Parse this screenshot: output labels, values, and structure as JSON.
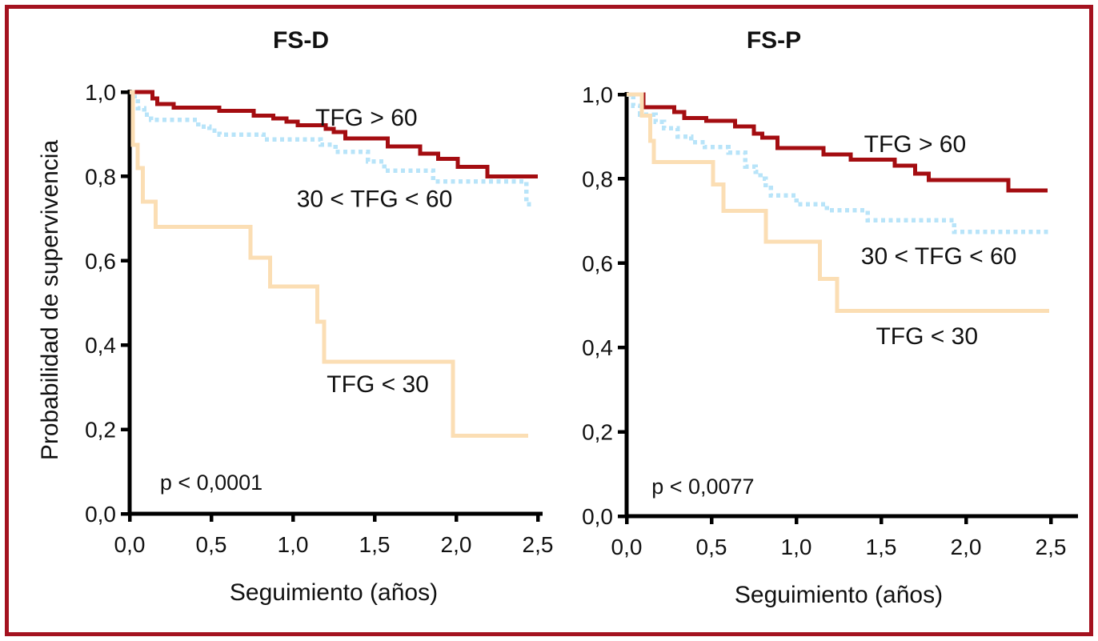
{
  "figure": {
    "border_color": "#A4121F",
    "background_color": "#FFFFFF",
    "text_color": "#111111",
    "axis_color": "#000000"
  },
  "colors": {
    "tfg_gt60": "#A40D11",
    "tfg_30_60": "#B8E4F9",
    "tfg_lt30": "#FBDEB4"
  },
  "chart_data": [
    {
      "type": "line",
      "subtype": "kaplan-meier-step",
      "id": "fsd",
      "title": "FS-D",
      "xlabel": "Seguimiento (años)",
      "ylabel": "Probabilidad de supervivencia",
      "p_value": "p < 0,0001",
      "xlim": [
        0,
        2.6
      ],
      "ylim": [
        0,
        1.0
      ],
      "grid": false,
      "legend": "inline-annotations",
      "xtick_values": [
        0,
        0.5,
        1.0,
        1.5,
        2.0,
        2.5
      ],
      "xticks": [
        "0,0",
        "0,5",
        "1,0",
        "1,5",
        "2,0",
        "2,5"
      ],
      "ytick_values": [
        0,
        0.2,
        0.4,
        0.6,
        0.8,
        1.0
      ],
      "yticks": [
        "0,0",
        "0,2",
        "0,4",
        "0,6",
        "0,8",
        "1,0"
      ],
      "series": [
        {
          "name": "TFG > 60",
          "key": "tfg-gt60",
          "style": "solid",
          "color": "#A40D11",
          "points": [
            [
              0,
              1.0
            ],
            [
              0.14,
              0.985
            ],
            [
              0.17,
              0.972
            ],
            [
              0.27,
              0.963
            ],
            [
              0.55,
              0.955
            ],
            [
              0.76,
              0.944
            ],
            [
              0.88,
              0.937
            ],
            [
              0.96,
              0.93
            ],
            [
              1.03,
              0.921
            ],
            [
              1.2,
              0.913
            ],
            [
              1.25,
              0.905
            ],
            [
              1.32,
              0.89
            ],
            [
              1.58,
              0.871
            ],
            [
              1.78,
              0.854
            ],
            [
              1.89,
              0.842
            ],
            [
              2.01,
              0.823
            ],
            [
              2.19,
              0.8
            ],
            [
              2.5,
              0.8
            ]
          ]
        },
        {
          "name": "30 < TFG < 60",
          "key": "tfg-30-60",
          "style": "dotted",
          "color": "#B8E4F9",
          "points": [
            [
              0,
              1.0
            ],
            [
              0.03,
              0.985
            ],
            [
              0.05,
              0.962
            ],
            [
              0.09,
              0.946
            ],
            [
              0.13,
              0.934
            ],
            [
              0.42,
              0.918
            ],
            [
              0.49,
              0.908
            ],
            [
              0.55,
              0.899
            ],
            [
              0.82,
              0.888
            ],
            [
              1.17,
              0.875
            ],
            [
              1.26,
              0.858
            ],
            [
              1.46,
              0.835
            ],
            [
              1.56,
              0.814
            ],
            [
              1.86,
              0.788
            ],
            [
              2.43,
              0.734
            ],
            [
              2.46,
              0.734
            ]
          ]
        },
        {
          "name": "TFG < 30",
          "key": "tfg-lt30",
          "style": "solid",
          "color": "#FBDEB4",
          "points": [
            [
              0,
              1.0
            ],
            [
              0.02,
              0.875
            ],
            [
              0.05,
              0.82
            ],
            [
              0.08,
              0.74
            ],
            [
              0.16,
              0.68
            ],
            [
              0.74,
              0.607
            ],
            [
              0.86,
              0.539
            ],
            [
              1.15,
              0.455
            ],
            [
              1.19,
              0.361
            ],
            [
              1.98,
              0.185
            ],
            [
              2.44,
              0.185
            ]
          ]
        }
      ],
      "annotations": [
        {
          "text": "TFG > 60",
          "x": 1.45,
          "y": 0.939,
          "kind": "curve-label"
        },
        {
          "text": "30 < TFG < 60",
          "x": 1.5,
          "y": 0.747,
          "kind": "curve-label"
        },
        {
          "text": "TFG < 30",
          "x": 1.52,
          "y": 0.307,
          "kind": "curve-label"
        },
        {
          "text": "p < 0,0001",
          "x": 0.5,
          "y": 0.076,
          "kind": "p-label"
        }
      ]
    },
    {
      "type": "line",
      "subtype": "kaplan-meier-step",
      "id": "fsp",
      "title": "FS-P",
      "xlabel": "Seguimiento (años)",
      "ylabel": "",
      "p_value": "p < 0,0077",
      "xlim": [
        0,
        2.6
      ],
      "ylim": [
        0,
        1.0
      ],
      "grid": false,
      "legend": "inline-annotations",
      "xtick_values": [
        0,
        0.5,
        1.0,
        1.5,
        2.0,
        2.5
      ],
      "xticks": [
        "0,0",
        "0,5",
        "1,0",
        "1,5",
        "2,0",
        "2,5"
      ],
      "ytick_values": [
        0,
        0.2,
        0.4,
        0.6,
        0.8,
        1.0
      ],
      "yticks": [
        "0,0",
        "0,2",
        "0,4",
        "0,6",
        "0,8",
        "1,0"
      ],
      "series": [
        {
          "name": "TFG > 60",
          "key": "tfg-gt60",
          "style": "solid",
          "color": "#A40D11",
          "points": [
            [
              0,
              1.0
            ],
            [
              0.1,
              0.97
            ],
            [
              0.28,
              0.958
            ],
            [
              0.34,
              0.944
            ],
            [
              0.47,
              0.937
            ],
            [
              0.64,
              0.924
            ],
            [
              0.75,
              0.907
            ],
            [
              0.8,
              0.898
            ],
            [
              0.89,
              0.873
            ],
            [
              1.16,
              0.858
            ],
            [
              1.32,
              0.845
            ],
            [
              1.58,
              0.831
            ],
            [
              1.7,
              0.812
            ],
            [
              1.78,
              0.797
            ],
            [
              2.25,
              0.772
            ],
            [
              2.48,
              0.772
            ]
          ]
        },
        {
          "name": "30 < TFG < 60",
          "key": "tfg-30-60",
          "style": "dotted",
          "color": "#B8E4F9",
          "points": [
            [
              0,
              1.0
            ],
            [
              0.04,
              0.973
            ],
            [
              0.08,
              0.952
            ],
            [
              0.17,
              0.935
            ],
            [
              0.22,
              0.92
            ],
            [
              0.3,
              0.9
            ],
            [
              0.38,
              0.887
            ],
            [
              0.46,
              0.875
            ],
            [
              0.6,
              0.862
            ],
            [
              0.7,
              0.829
            ],
            [
              0.76,
              0.816
            ],
            [
              0.79,
              0.8
            ],
            [
              0.82,
              0.778
            ],
            [
              0.85,
              0.76
            ],
            [
              1.0,
              0.74
            ],
            [
              1.18,
              0.725
            ],
            [
              1.42,
              0.702
            ],
            [
              1.93,
              0.674
            ],
            [
              2.49,
              0.674
            ]
          ]
        },
        {
          "name": "TFG < 30",
          "key": "tfg-lt30",
          "style": "solid",
          "color": "#FBDEB4",
          "points": [
            [
              0,
              1.0
            ],
            [
              0.09,
              0.95
            ],
            [
              0.14,
              0.89
            ],
            [
              0.16,
              0.84
            ],
            [
              0.51,
              0.787
            ],
            [
              0.57,
              0.724
            ],
            [
              0.82,
              0.651
            ],
            [
              1.14,
              0.563
            ],
            [
              1.24,
              0.487
            ],
            [
              2.49,
              0.487
            ]
          ]
        }
      ],
      "annotations": [
        {
          "text": "TFG > 60",
          "x": 1.7,
          "y": 0.882,
          "kind": "curve-label"
        },
        {
          "text": "30 < TFG < 60",
          "x": 1.84,
          "y": 0.617,
          "kind": "curve-label"
        },
        {
          "text": "TFG < 30",
          "x": 1.77,
          "y": 0.427,
          "kind": "curve-label"
        },
        {
          "text": "p < 0,0077",
          "x": 0.45,
          "y": 0.072,
          "kind": "p-label"
        }
      ]
    }
  ]
}
